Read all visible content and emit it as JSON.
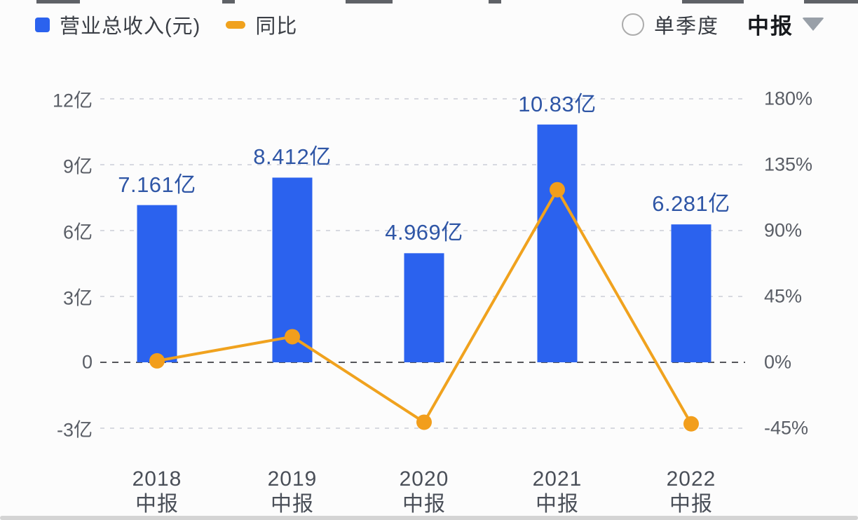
{
  "legend": {
    "items": [
      {
        "label": "营业总收入(元)",
        "swatch": "bar-square",
        "color": "#2B62EE"
      },
      {
        "label": "同比",
        "swatch": "line-pill",
        "color": "#F0A21E"
      }
    ]
  },
  "controls": {
    "radio_label": "单季度",
    "radio_checked": false,
    "dropdown_value": "中报",
    "caret_icon": "chevron-down-icon"
  },
  "colors": {
    "bar": "#2B62EE",
    "line": "#F0A21E",
    "point": "#F29E1C",
    "value_label": "#2F56A6",
    "grid": "#D7D9E0",
    "zero_line": "#55565A",
    "background": "#FCFCFC"
  },
  "chart_data": {
    "type": "bar",
    "subtype": "combo-bar-line",
    "categories": [
      "2018 中报",
      "2019 中报",
      "2020 中报",
      "2021 中报",
      "2022 中报"
    ],
    "category_lines": [
      [
        "2018",
        "中报"
      ],
      [
        "2019",
        "中报"
      ],
      [
        "2020",
        "中报"
      ],
      [
        "2021",
        "中报"
      ],
      [
        "2022",
        "中报"
      ]
    ],
    "series": [
      {
        "name": "营业总收入(元)",
        "type": "bar",
        "axis": "left",
        "unit": "亿",
        "values": [
          7.161,
          8.412,
          4.969,
          10.83,
          6.281
        ],
        "labels": [
          "7.161亿",
          "8.412亿",
          "4.969亿",
          "10.83亿",
          "6.281亿"
        ]
      },
      {
        "name": "同比",
        "type": "line",
        "axis": "right",
        "unit": "%",
        "values": [
          1.0,
          17.5,
          -40.9,
          117.9,
          -42.0
        ]
      }
    ],
    "left_axis": {
      "tick_labels": [
        "12亿",
        "9亿",
        "6亿",
        "3亿",
        "0",
        "-3亿"
      ],
      "tick_values": [
        12,
        9,
        6,
        3,
        0,
        -3
      ],
      "range": [
        -3,
        12
      ]
    },
    "right_axis": {
      "tick_labels": [
        "180%",
        "135%",
        "90%",
        "45%",
        "0%",
        "-45%"
      ],
      "tick_values": [
        180,
        135,
        90,
        45,
        0,
        -45
      ],
      "range": [
        -45,
        180
      ]
    },
    "grid": "dashed-horizontal",
    "legend_position": "top-left",
    "title": ""
  }
}
